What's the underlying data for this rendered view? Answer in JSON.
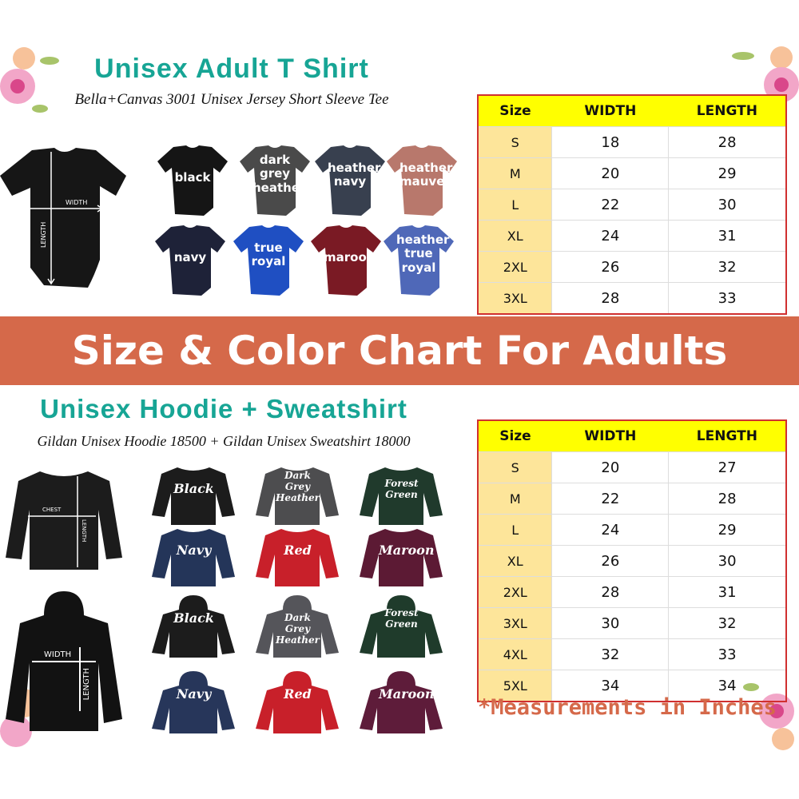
{
  "tshirt_section": {
    "title": "Unisex Adult T Shirt",
    "subtitle": "Bella+Canvas 3001 Unisex Jersey Short Sleeve Tee",
    "diagram": {
      "width_label": "WIDTH",
      "length_label": "LENGTH"
    },
    "colors": [
      {
        "label": "black",
        "hex": "#151515"
      },
      {
        "label": "dark grey heather",
        "hex": "#4a4a4a"
      },
      {
        "label": "heather navy",
        "hex": "#38404f"
      },
      {
        "label": "heather mauve",
        "hex": "#b8786c"
      },
      {
        "label": "navy",
        "hex": "#1e2238"
      },
      {
        "label": "true royal",
        "hex": "#1f4fc2"
      },
      {
        "label": "maroon",
        "hex": "#7a1a24"
      },
      {
        "label": "heather true royal",
        "hex": "#4f68b8"
      }
    ],
    "table": {
      "headers": [
        "Size",
        "WIDTH",
        "LENGTH"
      ],
      "rows": [
        [
          "S",
          "18",
          "28"
        ],
        [
          "M",
          "20",
          "29"
        ],
        [
          "L",
          "22",
          "30"
        ],
        [
          "XL",
          "24",
          "31"
        ],
        [
          "2XL",
          "26",
          "32"
        ],
        [
          "3XL",
          "28",
          "33"
        ]
      ]
    }
  },
  "banner": {
    "text": "Size & Color Chart For Adults",
    "color": "#d5694a"
  },
  "hoodie_section": {
    "title": "Unisex Hoodie + Sweatshirt",
    "subtitle": "Gildan Unisex Hoodie 18500 + Gildan Unisex Sweatshirt 18000",
    "sweatshirt_diagram": {
      "width_label": "CHEST",
      "length_label": "LENGTH"
    },
    "hoodie_diagram": {
      "width_label": "WIDTH",
      "length_label": "LENGTH"
    },
    "sweatshirts": [
      {
        "label": "Black",
        "hex": "#1c1c1c"
      },
      {
        "label": "Dark Grey Heather",
        "hex": "#4d4d4f"
      },
      {
        "label": "Forest Green",
        "hex": "#203a2c"
      },
      {
        "label": "Navy",
        "hex": "#243559"
      },
      {
        "label": "Red",
        "hex": "#c8202a"
      },
      {
        "label": "Maroon",
        "hex": "#5c1a34"
      }
    ],
    "hoodies": [
      {
        "label": "Black",
        "hex": "#1c1c1c"
      },
      {
        "label": "Dark Grey Heather",
        "hex": "#55555a"
      },
      {
        "label": "Forest Green",
        "hex": "#1f3b2b"
      },
      {
        "label": "Navy",
        "hex": "#27365a"
      },
      {
        "label": "Red",
        "hex": "#c8202a"
      },
      {
        "label": "Maroon",
        "hex": "#5e1c3a"
      }
    ],
    "table": {
      "headers": [
        "Size",
        "WIDTH",
        "LENGTH"
      ],
      "rows": [
        [
          "S",
          "20",
          "27"
        ],
        [
          "M",
          "22",
          "28"
        ],
        [
          "L",
          "24",
          "29"
        ],
        [
          "XL",
          "26",
          "30"
        ],
        [
          "2XL",
          "28",
          "31"
        ],
        [
          "3XL",
          "30",
          "32"
        ],
        [
          "4XL",
          "32",
          "33"
        ],
        [
          "5XL",
          "34",
          "34"
        ]
      ]
    }
  },
  "footnote": "*Measurements in Inches",
  "accent_colors": {
    "teal": "#17a595",
    "header_yellow": "#ffff00",
    "size_column": "#fde59a",
    "table_border": "#d03030"
  }
}
